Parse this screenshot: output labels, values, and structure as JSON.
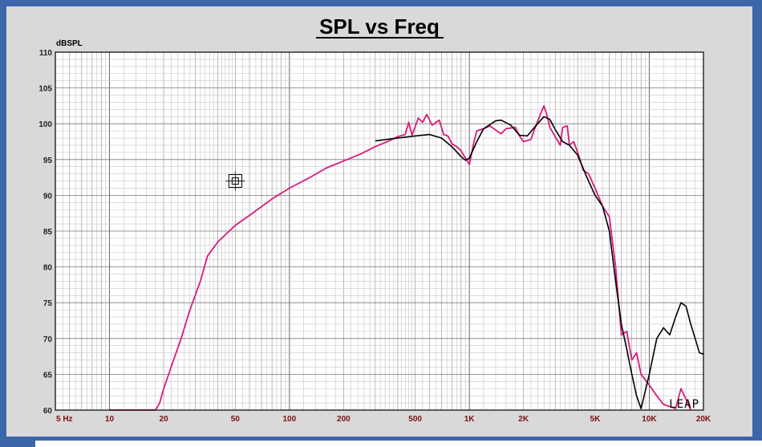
{
  "chart_data": {
    "type": "line",
    "title": "SPL vs Freq",
    "ylabel": "dBSPL",
    "xlabel": "",
    "xscale": "log",
    "xlim": [
      5,
      20000
    ],
    "ylim": [
      60,
      110
    ],
    "grid": true,
    "x_tick_values": [
      5,
      10,
      20,
      50,
      100,
      200,
      500,
      1000,
      2000,
      5000,
      10000,
      20000
    ],
    "x_tick_labels": [
      "5 Hz",
      "10",
      "20",
      "50",
      "100",
      "200",
      "500",
      "1K",
      "2K",
      "5K",
      "10K",
      "20K"
    ],
    "y_tick_values": [
      60,
      65,
      70,
      75,
      80,
      85,
      90,
      95,
      100,
      105,
      110
    ],
    "y_tick_labels": [
      "60",
      "65",
      "70",
      "75",
      "80",
      "85",
      "90",
      "95",
      "100",
      "105",
      "110"
    ],
    "logo_text": "LEAP",
    "series": [
      {
        "color": "#d81b7a",
        "points": [
          [
            10,
            60
          ],
          [
            18,
            60
          ],
          [
            19,
            61
          ],
          [
            20,
            63
          ],
          [
            22,
            66
          ],
          [
            25,
            70
          ],
          [
            28,
            74
          ],
          [
            32,
            78
          ],
          [
            35,
            81.5
          ],
          [
            40,
            83.5
          ],
          [
            50,
            85.8
          ],
          [
            60,
            87.2
          ],
          [
            80,
            89.5
          ],
          [
            100,
            91
          ],
          [
            130,
            92.5
          ],
          [
            160,
            93.8
          ],
          [
            200,
            94.8
          ],
          [
            250,
            95.8
          ],
          [
            300,
            96.8
          ],
          [
            350,
            97.5
          ],
          [
            400,
            98.2
          ],
          [
            440,
            98.5
          ],
          [
            460,
            100.2
          ],
          [
            480,
            98.4
          ],
          [
            520,
            100.8
          ],
          [
            550,
            100.2
          ],
          [
            580,
            101.3
          ],
          [
            620,
            99.8
          ],
          [
            680,
            100.5
          ],
          [
            720,
            98.5
          ],
          [
            760,
            98.3
          ],
          [
            800,
            97.2
          ],
          [
            850,
            96.8
          ],
          [
            900,
            96.2
          ],
          [
            950,
            95.2
          ],
          [
            1000,
            94.3
          ],
          [
            1050,
            97
          ],
          [
            1100,
            99
          ],
          [
            1200,
            99.3
          ],
          [
            1300,
            99.7
          ],
          [
            1500,
            98.6
          ],
          [
            1600,
            99.3
          ],
          [
            1800,
            99.5
          ],
          [
            1900,
            98.3
          ],
          [
            2000,
            97.5
          ],
          [
            2200,
            97.8
          ],
          [
            2300,
            99.2
          ],
          [
            2500,
            101.5
          ],
          [
            2600,
            102.5
          ],
          [
            2700,
            101.2
          ],
          [
            2800,
            99.5
          ],
          [
            3000,
            98.2
          ],
          [
            3200,
            97
          ],
          [
            3300,
            99.5
          ],
          [
            3500,
            99.7
          ],
          [
            3600,
            97
          ],
          [
            3800,
            97.5
          ],
          [
            4000,
            96
          ],
          [
            4300,
            93.5
          ],
          [
            4600,
            93
          ],
          [
            5000,
            91
          ],
          [
            5500,
            88.5
          ],
          [
            6000,
            87
          ],
          [
            6500,
            80
          ],
          [
            7000,
            70.5
          ],
          [
            7500,
            71
          ],
          [
            8000,
            67
          ],
          [
            8500,
            68
          ],
          [
            9000,
            65
          ],
          [
            10000,
            63.5
          ],
          [
            11000,
            62
          ],
          [
            12000,
            60.8
          ],
          [
            14000,
            60.2
          ],
          [
            15000,
            63
          ],
          [
            16000,
            61.5
          ],
          [
            17000,
            60
          ]
        ]
      },
      {
        "color": "#000000",
        "points": [
          [
            300,
            97.6
          ],
          [
            400,
            98
          ],
          [
            500,
            98.3
          ],
          [
            600,
            98.5
          ],
          [
            700,
            98
          ],
          [
            800,
            96.8
          ],
          [
            900,
            95.4
          ],
          [
            950,
            94.9
          ],
          [
            1000,
            95.2
          ],
          [
            1100,
            97.5
          ],
          [
            1200,
            99.3
          ],
          [
            1400,
            100.4
          ],
          [
            1500,
            100.5
          ],
          [
            1700,
            99.8
          ],
          [
            1900,
            98.4
          ],
          [
            2100,
            98.3
          ],
          [
            2300,
            99.5
          ],
          [
            2600,
            101
          ],
          [
            2800,
            100.6
          ],
          [
            3000,
            99.2
          ],
          [
            3300,
            97.5
          ],
          [
            3600,
            97
          ],
          [
            4000,
            95.6
          ],
          [
            4500,
            92.5
          ],
          [
            5000,
            90
          ],
          [
            5500,
            88.5
          ],
          [
            6000,
            85
          ],
          [
            6500,
            78
          ],
          [
            7000,
            72
          ],
          [
            7500,
            68.5
          ],
          [
            8000,
            65
          ],
          [
            8500,
            62
          ],
          [
            9000,
            60.2
          ],
          [
            10000,
            65
          ],
          [
            11000,
            70
          ],
          [
            12000,
            71.5
          ],
          [
            13000,
            70.5
          ],
          [
            14000,
            73
          ],
          [
            15000,
            75
          ],
          [
            16000,
            74.5
          ],
          [
            17000,
            72
          ],
          [
            18000,
            70
          ],
          [
            19000,
            68
          ],
          [
            20000,
            67.8
          ]
        ]
      }
    ],
    "marker": {
      "x": 50,
      "y": 92
    }
  }
}
